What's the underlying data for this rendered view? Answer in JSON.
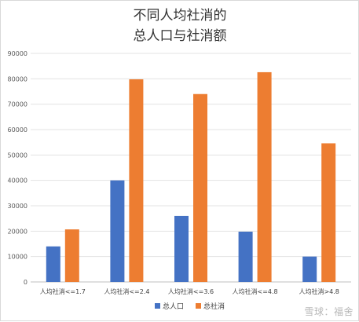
{
  "chart_data": {
    "type": "bar",
    "title_lines": [
      "不同人均社消的",
      "总人口与社消额"
    ],
    "categories": [
      "人均社消<=1.7",
      "人均社消<=2.4",
      "人均社消<=3.6",
      "人均社消<=4.8",
      "人均社消>4.8"
    ],
    "series": [
      {
        "name": "总人口",
        "color": "#4472c4",
        "values": [
          14000,
          40000,
          26000,
          19800,
          10000
        ]
      },
      {
        "name": "总社消",
        "color": "#ed7d31",
        "values": [
          20700,
          79800,
          74000,
          82600,
          54600
        ]
      }
    ],
    "ylim": [
      0,
      90000
    ],
    "yticks": [
      "0",
      "10000",
      "20000",
      "30000",
      "40000",
      "50000",
      "60000",
      "70000",
      "80000",
      "90000"
    ],
    "grid": true,
    "legend_position": "bottom"
  },
  "watermark": {
    "text": "雪球：福舍"
  }
}
